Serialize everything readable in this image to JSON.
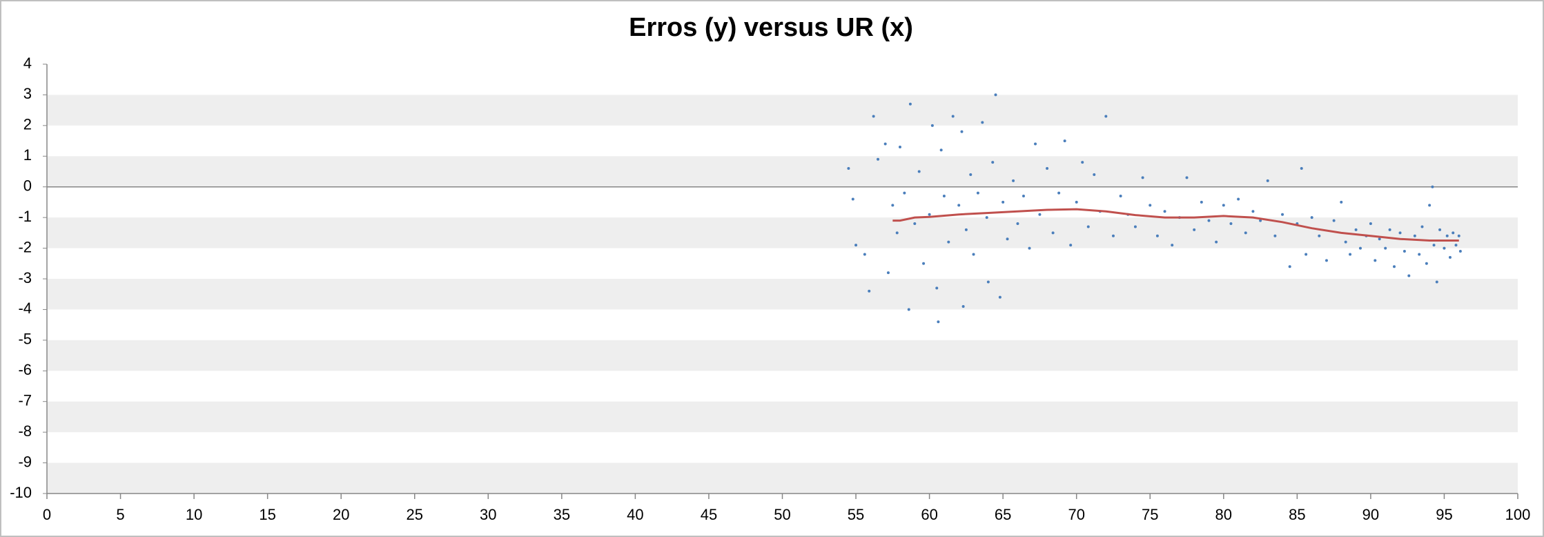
{
  "chart_data": {
    "type": "scatter",
    "title": "Erros (y) versus UR (x)",
    "xlim": [
      0,
      100
    ],
    "xticks": [
      0,
      5,
      10,
      15,
      20,
      25,
      30,
      35,
      40,
      45,
      50,
      55,
      60,
      65,
      70,
      75,
      80,
      85,
      90,
      95,
      100
    ],
    "ylim": [
      -10,
      4
    ],
    "yticks": [
      -10,
      -9,
      -8,
      -7,
      -6,
      -5,
      -4,
      -3,
      -2,
      -1,
      0,
      1,
      2,
      3,
      4
    ],
    "grid": "bands",
    "color": "#4a7ebb",
    "x": [
      54.5,
      54.8,
      55,
      55.6,
      55.9,
      56.2,
      56.5,
      57,
      57.2,
      57.5,
      57.8,
      58,
      58.3,
      58.7,
      58.6,
      59,
      59.3,
      59.6,
      60,
      60.2,
      60.5,
      60.6,
      60.8,
      61,
      61.3,
      61.6,
      62,
      62.2,
      62.3,
      62.5,
      62.8,
      63,
      63.3,
      63.6,
      63.9,
      64,
      64.3,
      64.5,
      64.8,
      65,
      65.3,
      65.7,
      66,
      66.4,
      66.8,
      67.2,
      67.5,
      68,
      68.4,
      68.8,
      69.2,
      69.6,
      70,
      70.4,
      70.8,
      71.2,
      71.6,
      72,
      72.5,
      73,
      73.5,
      74,
      74.5,
      75,
      75.5,
      76,
      76.5,
      77,
      77.5,
      78,
      78.5,
      79,
      79.5,
      80,
      80.5,
      81,
      81.5,
      82,
      82.5,
      83,
      83.5,
      84,
      84.5,
      85,
      85.3,
      85.6,
      86,
      86.5,
      87,
      87.5,
      88,
      88.3,
      88.6,
      89,
      89.3,
      89.7,
      90,
      90.3,
      90.6,
      91,
      91.3,
      91.6,
      92,
      92.3,
      92.6,
      93,
      93.3,
      93.5,
      93.8,
      94,
      94.2,
      94.3,
      94.5,
      94.7,
      95,
      95.2,
      95.4,
      95.6,
      95.8,
      96,
      96.1
    ],
    "values": [
      0.6,
      -0.4,
      -1.9,
      -2.2,
      -3.4,
      2.3,
      0.9,
      1.4,
      -2.8,
      -0.6,
      -1.5,
      1.3,
      -0.2,
      2.7,
      -4.0,
      -1.2,
      0.5,
      -2.5,
      -0.9,
      2.0,
      -3.3,
      -4.4,
      1.2,
      -0.3,
      -1.8,
      2.3,
      -0.6,
      1.8,
      -3.9,
      -1.4,
      0.4,
      -2.2,
      -0.2,
      2.1,
      -1.0,
      -3.1,
      0.8,
      3.0,
      -3.6,
      -0.5,
      -1.7,
      0.2,
      -1.2,
      -0.3,
      -2.0,
      1.4,
      -0.9,
      0.6,
      -1.5,
      -0.2,
      1.5,
      -1.9,
      -0.5,
      0.8,
      -1.3,
      0.4,
      -0.8,
      2.3,
      -1.6,
      -0.3,
      -0.9,
      -1.3,
      0.3,
      -0.6,
      -1.6,
      -0.8,
      -1.9,
      -1.0,
      0.3,
      -1.4,
      -0.5,
      -1.1,
      -1.8,
      -0.6,
      -1.2,
      -0.4,
      -1.5,
      -0.8,
      -1.1,
      0.2,
      -1.6,
      -0.9,
      -2.6,
      -1.2,
      0.6,
      -2.2,
      -1.0,
      -1.6,
      -2.4,
      -1.1,
      -0.5,
      -1.8,
      -2.2,
      -1.4,
      -2.0,
      -1.6,
      -1.2,
      -2.4,
      -1.7,
      -2.0,
      -1.4,
      -2.6,
      -1.5,
      -2.1,
      -2.9,
      -1.6,
      -2.2,
      -1.3,
      -2.5,
      -0.6,
      0.0,
      -1.9,
      -3.1,
      -1.4,
      -2.0,
      -1.6,
      -2.3,
      -1.5,
      -1.9,
      -1.6,
      -2.1
    ],
    "trend": {
      "color": "#c0504d",
      "x": [
        57.5,
        58,
        59,
        60,
        62,
        64,
        66,
        68,
        70,
        72,
        74,
        76,
        78,
        80,
        82,
        84,
        86,
        88,
        90,
        92,
        94,
        96
      ],
      "values": [
        -1.1,
        -1.1,
        -1.0,
        -0.98,
        -0.9,
        -0.85,
        -0.8,
        -0.75,
        -0.73,
        -0.8,
        -0.92,
        -1.0,
        -1.0,
        -0.95,
        -1.0,
        -1.15,
        -1.35,
        -1.5,
        -1.6,
        -1.7,
        -1.75,
        -1.75
      ]
    }
  }
}
